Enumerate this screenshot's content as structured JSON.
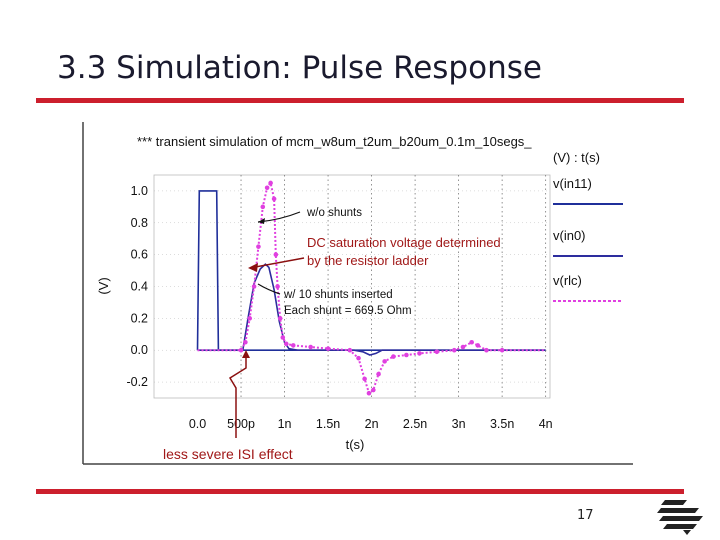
{
  "slide": {
    "title": "3.3 Simulation: Pulse Response",
    "page_number": "17",
    "accent_color": "#cc1f2d"
  },
  "chart_data": {
    "type": "line",
    "title": "*** transient simulation of mcm_w8um_t2um_b20um_0.1m_10segs_",
    "xlabel": "t(s)",
    "ylabel": "(V)",
    "xlim": [
      -0.5,
      4.05
    ],
    "ylim": [
      -0.3,
      1.1
    ],
    "x_ticks": [
      0,
      0.5,
      1,
      1.5,
      2,
      2.5,
      3,
      3.5,
      4
    ],
    "x_tick_labels": [
      "0.0",
      "500p",
      "1n",
      "1.5n",
      "2n",
      "2.5n",
      "3n",
      "3.5n",
      "4n"
    ],
    "x_unit": "ns",
    "y_ticks": [
      1.0,
      0.8,
      0.6,
      0.4,
      0.2,
      0.0,
      -0.2
    ],
    "y_tick_labels": [
      "1.0",
      "0.8",
      "0.6",
      "0.4",
      "0.2",
      "0.0",
      "-0.2"
    ],
    "grid": true,
    "legend_header": "(V) : t(s)",
    "series": [
      {
        "name": "v(in11)",
        "color": "#1f2f9a",
        "style": "solid",
        "points": [
          [
            0,
            0.0
          ],
          [
            0.02,
            1.0
          ],
          [
            0.22,
            1.0
          ],
          [
            0.24,
            0.0
          ],
          [
            1.0,
            0.0
          ],
          [
            4.0,
            0.0
          ]
        ]
      },
      {
        "name": "v(in0)",
        "color": "#2d2d9e",
        "style": "solid",
        "points": [
          [
            0,
            0.0
          ],
          [
            0.52,
            0.0
          ],
          [
            0.58,
            0.2
          ],
          [
            0.65,
            0.42
          ],
          [
            0.72,
            0.51
          ],
          [
            0.78,
            0.54
          ],
          [
            0.82,
            0.52
          ],
          [
            0.88,
            0.38
          ],
          [
            0.94,
            0.18
          ],
          [
            1.0,
            0.05
          ],
          [
            1.05,
            0.01
          ],
          [
            1.15,
            0.0
          ],
          [
            1.8,
            0.0
          ],
          [
            1.9,
            -0.01
          ],
          [
            1.98,
            -0.03
          ],
          [
            2.05,
            -0.02
          ],
          [
            2.12,
            0.0
          ],
          [
            4.0,
            0.0
          ]
        ]
      },
      {
        "name": "v(rlc)",
        "color": "#e040e0",
        "style": "dashed",
        "points": [
          [
            0,
            0.0
          ],
          [
            0.5,
            0.0
          ],
          [
            0.55,
            0.05
          ],
          [
            0.6,
            0.2
          ],
          [
            0.65,
            0.4
          ],
          [
            0.7,
            0.65
          ],
          [
            0.75,
            0.9
          ],
          [
            0.8,
            1.02
          ],
          [
            0.84,
            1.05
          ],
          [
            0.88,
            0.95
          ],
          [
            0.9,
            0.6
          ],
          [
            0.92,
            0.4
          ],
          [
            0.95,
            0.2
          ],
          [
            0.98,
            0.08
          ],
          [
            1.02,
            0.04
          ],
          [
            1.1,
            0.03
          ],
          [
            1.3,
            0.02
          ],
          [
            1.5,
            0.01
          ],
          [
            1.75,
            0.0
          ],
          [
            1.85,
            -0.05
          ],
          [
            1.92,
            -0.18
          ],
          [
            1.97,
            -0.27
          ],
          [
            2.02,
            -0.25
          ],
          [
            2.08,
            -0.15
          ],
          [
            2.15,
            -0.07
          ],
          [
            2.25,
            -0.04
          ],
          [
            2.4,
            -0.03
          ],
          [
            2.55,
            -0.02
          ],
          [
            2.75,
            -0.01
          ],
          [
            2.95,
            0.0
          ],
          [
            3.05,
            0.02
          ],
          [
            3.15,
            0.05
          ],
          [
            3.22,
            0.03
          ],
          [
            3.32,
            0.0
          ],
          [
            3.5,
            0.0
          ],
          [
            4.0,
            0.0
          ]
        ]
      }
    ],
    "annotations": [
      {
        "text": "w/o shunts"
      },
      {
        "text": "w/ 10 shunts inserted"
      },
      {
        "text": "Each shunt = 669.5 Ohm"
      },
      {
        "text": "DC saturation voltage determined",
        "color": "#a01818"
      },
      {
        "text": "by the resistor ladder",
        "color": "#a01818"
      },
      {
        "text": "less severe ISI effect",
        "color": "#a01818"
      }
    ]
  }
}
